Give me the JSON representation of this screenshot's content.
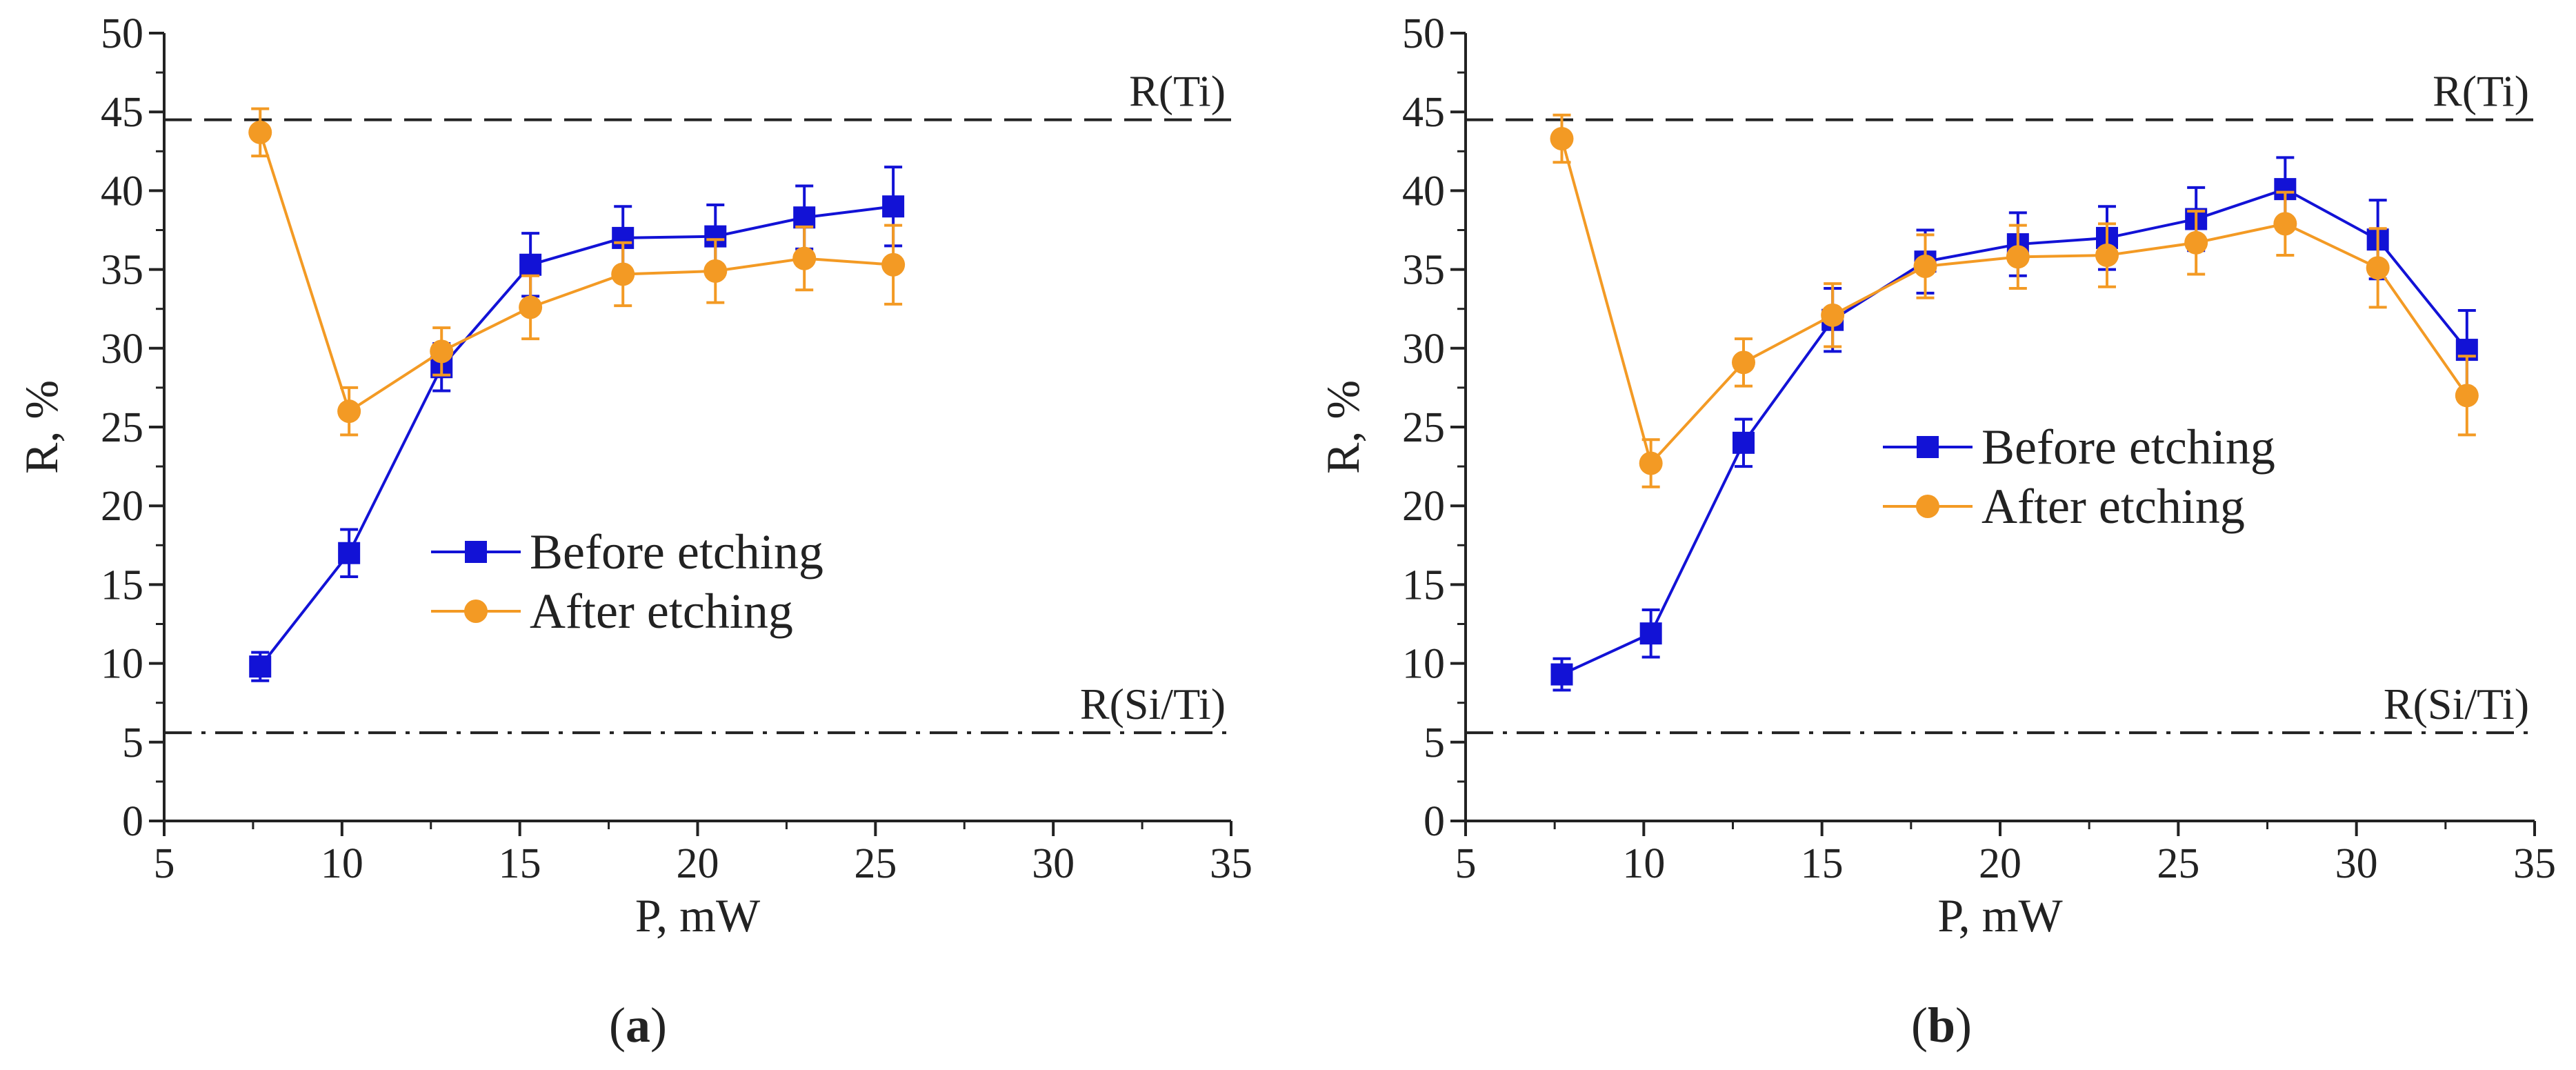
{
  "chart_data": [
    {
      "type": "line",
      "panel_label": "a",
      "xlabel": "P, mW",
      "ylabel": "R, %",
      "xlim": [
        5,
        35
      ],
      "ylim": [
        0,
        50
      ],
      "xticks": [
        5,
        10,
        15,
        20,
        25,
        30,
        35
      ],
      "yticks": [
        0,
        5,
        10,
        15,
        20,
        25,
        30,
        35,
        40,
        45,
        50
      ],
      "reference_lines": [
        {
          "label": "R(Ti)",
          "value": 44.5,
          "style": "dashed"
        },
        {
          "label": "R(Si/Ti)",
          "value": 5.6,
          "style": "dash-dot"
        }
      ],
      "legend_position": "center",
      "series": [
        {
          "name": "Before etching",
          "marker": "square",
          "color": "#1212d6",
          "x": [
            7.7,
            10.2,
            12.8,
            15.3,
            17.9,
            20.5,
            23.0,
            25.5
          ],
          "y": [
            9.8,
            17.0,
            28.8,
            35.3,
            37.0,
            37.1,
            38.3,
            39.0
          ],
          "err": [
            0.9,
            1.5,
            1.5,
            2.0,
            2.0,
            2.0,
            2.0,
            2.5
          ]
        },
        {
          "name": "After etching",
          "marker": "circle",
          "color": "#f39a24",
          "x": [
            7.7,
            10.2,
            12.8,
            15.3,
            17.9,
            20.5,
            23.0,
            25.5
          ],
          "y": [
            43.7,
            26.0,
            29.8,
            32.6,
            34.7,
            34.9,
            35.7,
            35.3
          ],
          "err": [
            1.5,
            1.5,
            1.5,
            2.0,
            2.0,
            2.0,
            2.0,
            2.5
          ]
        }
      ]
    },
    {
      "type": "line",
      "panel_label": "b",
      "xlabel": "P, mW",
      "ylabel": "R, %",
      "xlim": [
        5,
        35
      ],
      "ylim": [
        0,
        50
      ],
      "xticks": [
        5,
        10,
        15,
        20,
        25,
        30,
        35
      ],
      "yticks": [
        0,
        5,
        10,
        15,
        20,
        25,
        30,
        35,
        40,
        45,
        50
      ],
      "reference_lines": [
        {
          "label": "R(Ti)",
          "value": 44.5,
          "style": "dashed"
        },
        {
          "label": "R(Si/Ti)",
          "value": 5.6,
          "style": "dash-dot"
        }
      ],
      "legend_position": "center",
      "series": [
        {
          "name": "Before etching",
          "marker": "square",
          "color": "#1212d6",
          "x": [
            7.7,
            10.2,
            12.8,
            15.3,
            17.9,
            20.5,
            23.0,
            25.5,
            28.0,
            30.6,
            33.1
          ],
          "y": [
            9.3,
            11.9,
            24.0,
            31.8,
            35.5,
            36.6,
            37.0,
            38.2,
            40.1,
            36.9,
            29.9
          ],
          "err": [
            1.0,
            1.5,
            1.5,
            2.0,
            2.0,
            2.0,
            2.0,
            2.0,
            2.0,
            2.5,
            2.5
          ]
        },
        {
          "name": "After etching",
          "marker": "circle",
          "color": "#f39a24",
          "x": [
            7.7,
            10.2,
            12.8,
            15.3,
            17.9,
            20.5,
            23.0,
            25.5,
            28.0,
            30.6,
            33.1
          ],
          "y": [
            43.3,
            22.7,
            29.1,
            32.1,
            35.2,
            35.8,
            35.9,
            36.7,
            37.9,
            35.1,
            27.0
          ],
          "err": [
            1.5,
            1.5,
            1.5,
            2.0,
            2.0,
            2.0,
            2.0,
            2.0,
            2.0,
            2.5,
            2.5
          ]
        }
      ]
    }
  ]
}
